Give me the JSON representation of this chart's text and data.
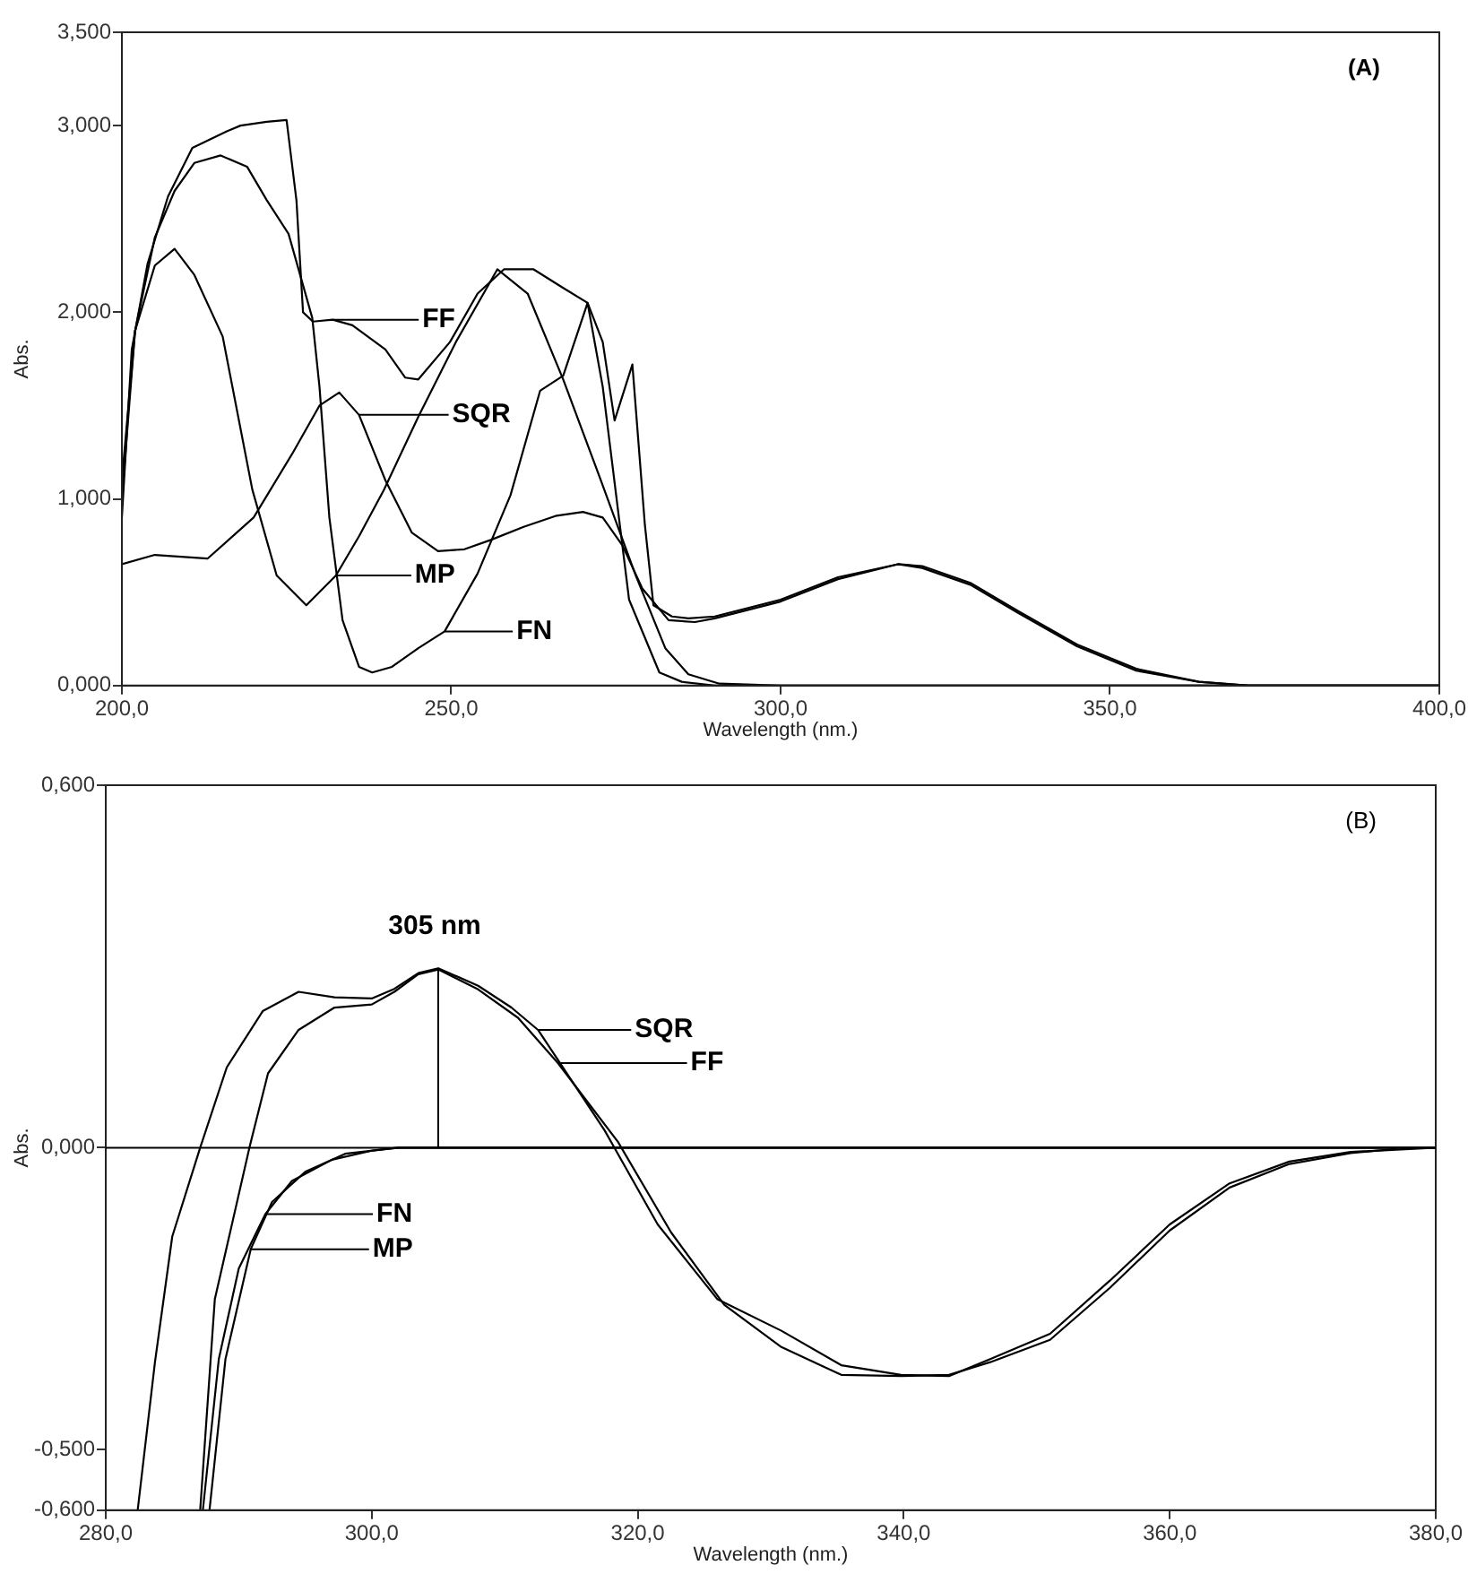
{
  "chart_data": [
    {
      "type": "line",
      "xlabel": "Wavelength (nm.)",
      "ylabel": "Abs.",
      "annotations": [
        "(A)"
      ],
      "xlim": [
        200,
        400
      ],
      "xticks": [
        {
          "value": 200,
          "label": "200,0"
        },
        {
          "value": 250,
          "label": "250,0"
        },
        {
          "value": 300,
          "label": "300,0"
        },
        {
          "value": 350,
          "label": "350,0"
        },
        {
          "value": 400,
          "label": "400,0"
        }
      ],
      "ylim": [
        0,
        3.5
      ],
      "yticks": [
        {
          "value": 0,
          "label": "0,000"
        },
        {
          "value": 1,
          "label": "1,000"
        },
        {
          "value": 2,
          "label": "2,000"
        },
        {
          "value": 3,
          "label": "3,000"
        },
        {
          "value": 3.5,
          "label": "3,500"
        }
      ],
      "grid": false,
      "legend": "center",
      "series": [
        {
          "name": "FF",
          "color": "#000000",
          "x": [
            200,
            201.5,
            203.9,
            207,
            210.7,
            216,
            218,
            222,
            225,
            226.5,
            227.5,
            229,
            232,
            235,
            240,
            243,
            245,
            249.8,
            254,
            258,
            262.5,
            267,
            270.7,
            273,
            274.8,
            277.5,
            279.4,
            280.7,
            283.5,
            286,
            290,
            300,
            308.7,
            317.8,
            321.5,
            328.8,
            336,
            345,
            354,
            363.5,
            371,
            380,
            400
          ],
          "values": [
            0.9,
            1.8,
            2.26,
            2.62,
            2.88,
            2.97,
            3.0,
            3.02,
            3.03,
            2.6,
            2.0,
            1.95,
            1.96,
            1.93,
            1.8,
            1.65,
            1.64,
            1.84,
            2.1,
            2.23,
            2.23,
            2.13,
            2.05,
            1.84,
            1.42,
            1.72,
            0.86,
            0.43,
            0.37,
            0.36,
            0.37,
            0.46,
            0.58,
            0.65,
            0.64,
            0.55,
            0.4,
            0.22,
            0.09,
            0.02,
            0,
            0,
            0
          ]
        },
        {
          "name": "SQR",
          "color": "#000000",
          "x": [
            200,
            205,
            213,
            220,
            226,
            230,
            233,
            236,
            240,
            244,
            248,
            252,
            256,
            261,
            266,
            270,
            273,
            276,
            279,
            283,
            287,
            290,
            300,
            308.7,
            317.8,
            321.5,
            328.8,
            336,
            345,
            354,
            363.5,
            371,
            380,
            400
          ],
          "values": [
            0.65,
            0.7,
            0.68,
            0.9,
            1.25,
            1.5,
            1.57,
            1.45,
            1.1,
            0.82,
            0.72,
            0.73,
            0.78,
            0.85,
            0.91,
            0.93,
            0.9,
            0.75,
            0.52,
            0.35,
            0.34,
            0.36,
            0.45,
            0.57,
            0.65,
            0.63,
            0.54,
            0.39,
            0.21,
            0.08,
            0.02,
            0,
            0,
            0
          ]
        },
        {
          "name": "MP",
          "color": "#000000",
          "x": [
            200,
            202,
            205,
            208,
            211,
            215.3,
            219.8,
            223.5,
            228,
            232.5,
            236,
            239.8,
            245,
            250.7,
            257,
            261.6,
            267,
            272.5,
            278,
            282.5,
            286,
            290.7,
            300,
            400
          ],
          "values": [
            1.1,
            1.9,
            2.25,
            2.34,
            2.2,
            1.87,
            1.05,
            0.59,
            0.43,
            0.59,
            0.8,
            1.05,
            1.44,
            1.84,
            2.23,
            2.1,
            1.64,
            1.12,
            0.59,
            0.2,
            0.06,
            0.01,
            0,
            0
          ]
        },
        {
          "name": "FN",
          "color": "#000000",
          "x": [
            200,
            202,
            205,
            208,
            211,
            215,
            219,
            222,
            225.3,
            228.9,
            230,
            231.5,
            233.5,
            236,
            238,
            241,
            245,
            249,
            254,
            259,
            263.5,
            267,
            270.7,
            273,
            277,
            281.6,
            285,
            290,
            300,
            400
          ],
          "values": [
            1.0,
            1.9,
            2.4,
            2.65,
            2.8,
            2.84,
            2.78,
            2.6,
            2.42,
            1.97,
            1.6,
            0.9,
            0.35,
            0.1,
            0.07,
            0.1,
            0.2,
            0.29,
            0.6,
            1.02,
            1.58,
            1.66,
            2.05,
            1.6,
            0.46,
            0.07,
            0.02,
            0,
            0,
            0
          ]
        }
      ]
    },
    {
      "type": "line",
      "xlabel": "Wavelength (nm.)",
      "ylabel": "Abs.",
      "annotations": [
        "(B)",
        {
          "text": "305 nm",
          "x": 305,
          "y": 0.297
        }
      ],
      "xlim": [
        280,
        380
      ],
      "xticks": [
        {
          "value": 280,
          "label": "280,0"
        },
        {
          "value": 300,
          "label": "300,0"
        },
        {
          "value": 320,
          "label": "320,0"
        },
        {
          "value": 340,
          "label": "340,0"
        },
        {
          "value": 360,
          "label": "360,0"
        },
        {
          "value": 380,
          "label": "380,0"
        }
      ],
      "ylim": [
        -0.6,
        0.6
      ],
      "yticks": [
        {
          "value": -0.6,
          "label": "-0,600"
        },
        {
          "value": -0.5,
          "label": "-0,500"
        },
        {
          "value": 0,
          "label": "0,000"
        },
        {
          "value": 0.6,
          "label": "0,600"
        }
      ],
      "grid": false,
      "legend": "center",
      "ref_lines": [
        {
          "axis": "y",
          "value": 0
        }
      ],
      "series": [
        {
          "name": "SQR",
          "color": "#000000",
          "x": [
            282.4,
            283.7,
            285,
            287.1,
            289.1,
            291.8,
            294.5,
            297.2,
            300,
            301.7,
            303.5,
            305,
            308,
            310.5,
            312.5,
            317.5,
            321.5,
            326,
            330.8,
            335.3,
            339.8,
            343.4,
            346.5,
            351,
            355.5,
            360,
            364.5,
            369,
            373.6,
            380
          ],
          "values": [
            -0.6,
            -0.355,
            -0.147,
            0,
            0.133,
            0.226,
            0.258,
            0.249,
            0.247,
            0.263,
            0.289,
            0.297,
            0.268,
            0.232,
            0.195,
            0.029,
            -0.127,
            -0.251,
            -0.303,
            -0.36,
            -0.376,
            -0.378,
            -0.35,
            -0.308,
            -0.22,
            -0.127,
            -0.059,
            -0.023,
            -0.007,
            0
          ]
        },
        {
          "name": "FF",
          "color": "#000000",
          "x": [
            287.1,
            288.2,
            290.8,
            292.2,
            294.5,
            297.2,
            300,
            301.7,
            303.5,
            305,
            308,
            311,
            314,
            318.5,
            322.5,
            326.5,
            330.8,
            335.3,
            339.8,
            343.4,
            346.5,
            351,
            355.5,
            360,
            364.5,
            369,
            373.6,
            377
          ],
          "values": [
            -0.6,
            -0.251,
            0,
            0.123,
            0.195,
            0.232,
            0.237,
            0.258,
            0.287,
            0.295,
            0.262,
            0.215,
            0.14,
            0.01,
            -0.14,
            -0.26,
            -0.33,
            -0.376,
            -0.378,
            -0.376,
            -0.355,
            -0.318,
            -0.232,
            -0.137,
            -0.066,
            -0.027,
            -0.009,
            -0.002
          ]
        },
        {
          "name": "FN",
          "color": "#000000",
          "x": [
            287.3,
            288.5,
            290,
            292,
            294,
            297,
            300,
            302,
            380
          ],
          "values": [
            -0.6,
            -0.35,
            -0.2,
            -0.11,
            -0.055,
            -0.02,
            -0.005,
            0,
            0
          ]
        },
        {
          "name": "MP",
          "color": "#000000",
          "x": [
            287.8,
            289,
            290.9,
            292.5,
            295,
            298,
            302,
            380
          ],
          "values": [
            -0.6,
            -0.35,
            -0.168,
            -0.09,
            -0.04,
            -0.01,
            0,
            0
          ]
        }
      ]
    }
  ]
}
